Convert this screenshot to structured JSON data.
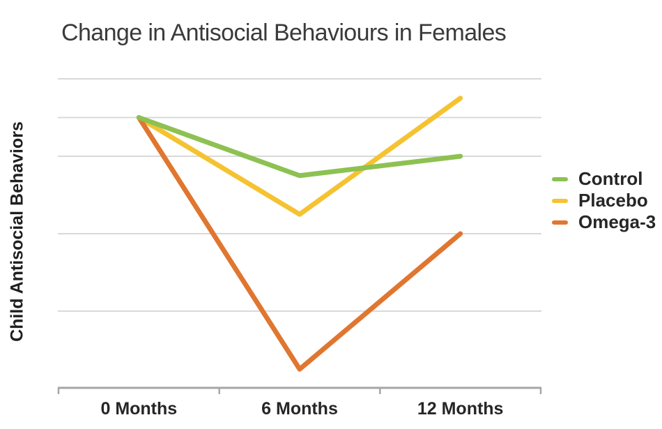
{
  "chart_data": {
    "type": "line",
    "title": "Change in Antisocial Behaviours in Females",
    "xlabel": "",
    "ylabel": "Child Antisocial Behaviors",
    "categories": [
      "0 Months",
      "6 Months",
      "12 Months"
    ],
    "series": [
      {
        "name": "Control",
        "color": "#8dc152",
        "values": [
          7,
          5.5,
          6
        ]
      },
      {
        "name": "Placebo",
        "color": "#f5c331",
        "values": [
          7,
          4.5,
          7.5
        ]
      },
      {
        "name": "Omega-3",
        "color": "#e0762f",
        "values": [
          7,
          0.5,
          4
        ]
      }
    ],
    "ylim": [
      0,
      8
    ],
    "y_tick_labels_visible": false,
    "gridline_values": [
      8,
      7,
      6,
      4,
      2
    ],
    "grid": true,
    "legend_position": "right",
    "draw_order": [
      "Placebo",
      "Omega-3",
      "Control"
    ]
  },
  "style": {
    "grid_color": "#d9d9d9",
    "axis_color": "#a6a6a6",
    "series_line_width": 7,
    "title_color": "#3a3a3a",
    "label_color": "#262626"
  }
}
